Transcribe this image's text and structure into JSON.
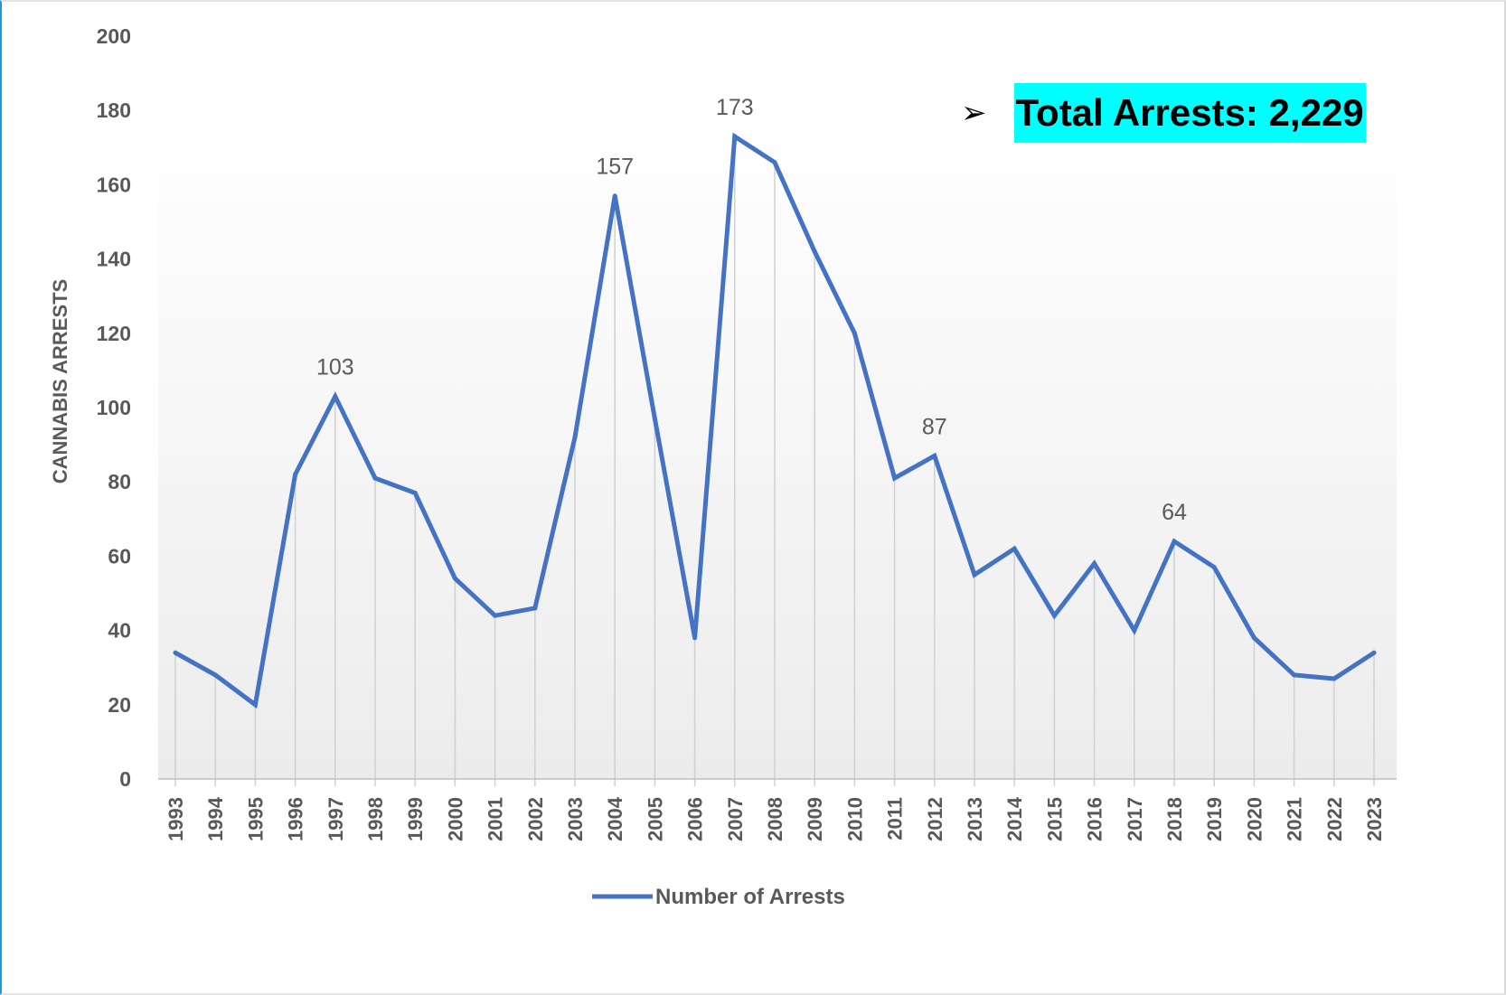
{
  "chart_data": {
    "type": "line",
    "ylabel": "CANNABIS ARRESTS",
    "ylim": [
      0,
      200
    ],
    "yticks": [
      "0",
      "20",
      "40",
      "60",
      "80",
      "100",
      "120",
      "140",
      "160",
      "180",
      "200"
    ],
    "categories": [
      "1993",
      "1994",
      "1995",
      "1996",
      "1997",
      "1998",
      "1999",
      "2000",
      "2001",
      "2002",
      "2003",
      "2004",
      "2005",
      "2006",
      "2007",
      "2008",
      "2009",
      "2010",
      "2011",
      "2012",
      "2013",
      "2014",
      "2015",
      "2016",
      "2017",
      "2018",
      "2019",
      "2020",
      "2021",
      "2022",
      "2023"
    ],
    "series": [
      {
        "name": "Number of Arrests",
        "color": "#4472c4",
        "values": [
          34,
          28,
          20,
          82,
          103,
          81,
          77,
          54,
          44,
          46,
          92,
          157,
          97,
          38,
          173,
          166,
          142,
          120,
          81,
          87,
          55,
          62,
          44,
          58,
          40,
          64,
          57,
          38,
          28,
          27,
          34
        ]
      }
    ],
    "data_labels": [
      {
        "category": "1997",
        "text": "103"
      },
      {
        "category": "2004",
        "text": "157"
      },
      {
        "category": "2007",
        "text": "173"
      },
      {
        "category": "2012",
        "text": "87"
      },
      {
        "category": "2018",
        "text": "64"
      }
    ],
    "grid": "vertical drop lines",
    "legend": "bottom"
  },
  "callout": {
    "bullet": "➢",
    "text": "Total Arrests: 2,229"
  }
}
